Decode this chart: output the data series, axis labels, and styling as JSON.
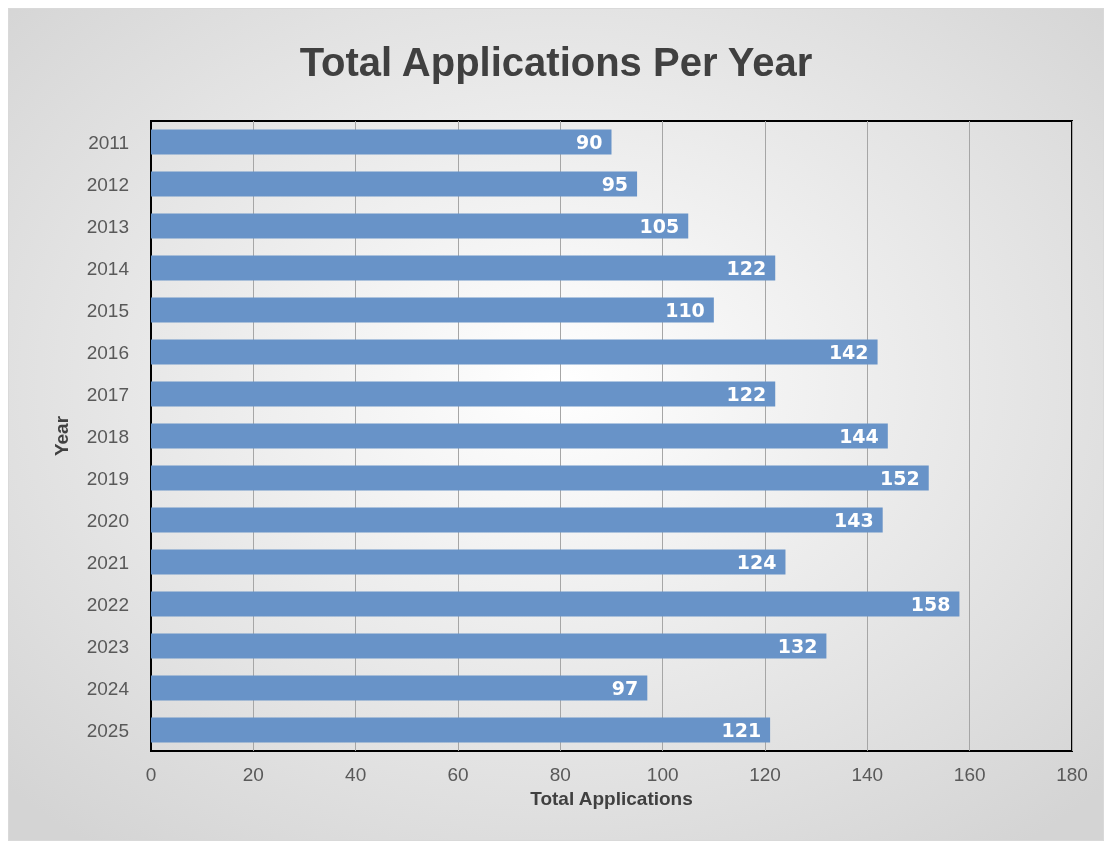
{
  "chart_data": {
    "type": "bar",
    "orientation": "horizontal",
    "title": "Total Applications Per Year",
    "xlabel": "Total Applications",
    "ylabel": "Year",
    "categories": [
      "2011",
      "2012",
      "2013",
      "2014",
      "2015",
      "2016",
      "2017",
      "2018",
      "2019",
      "2020",
      "2021",
      "2022",
      "2023",
      "2024",
      "2025"
    ],
    "values": [
      90,
      95,
      105,
      122,
      110,
      142,
      122,
      144,
      152,
      143,
      124,
      158,
      132,
      97,
      121
    ],
    "color": "#6893c8",
    "xlim": [
      0,
      180
    ],
    "xticks": [
      0,
      20,
      40,
      60,
      80,
      100,
      120,
      140,
      160,
      180
    ],
    "grid": "x",
    "data_labels": true
  }
}
